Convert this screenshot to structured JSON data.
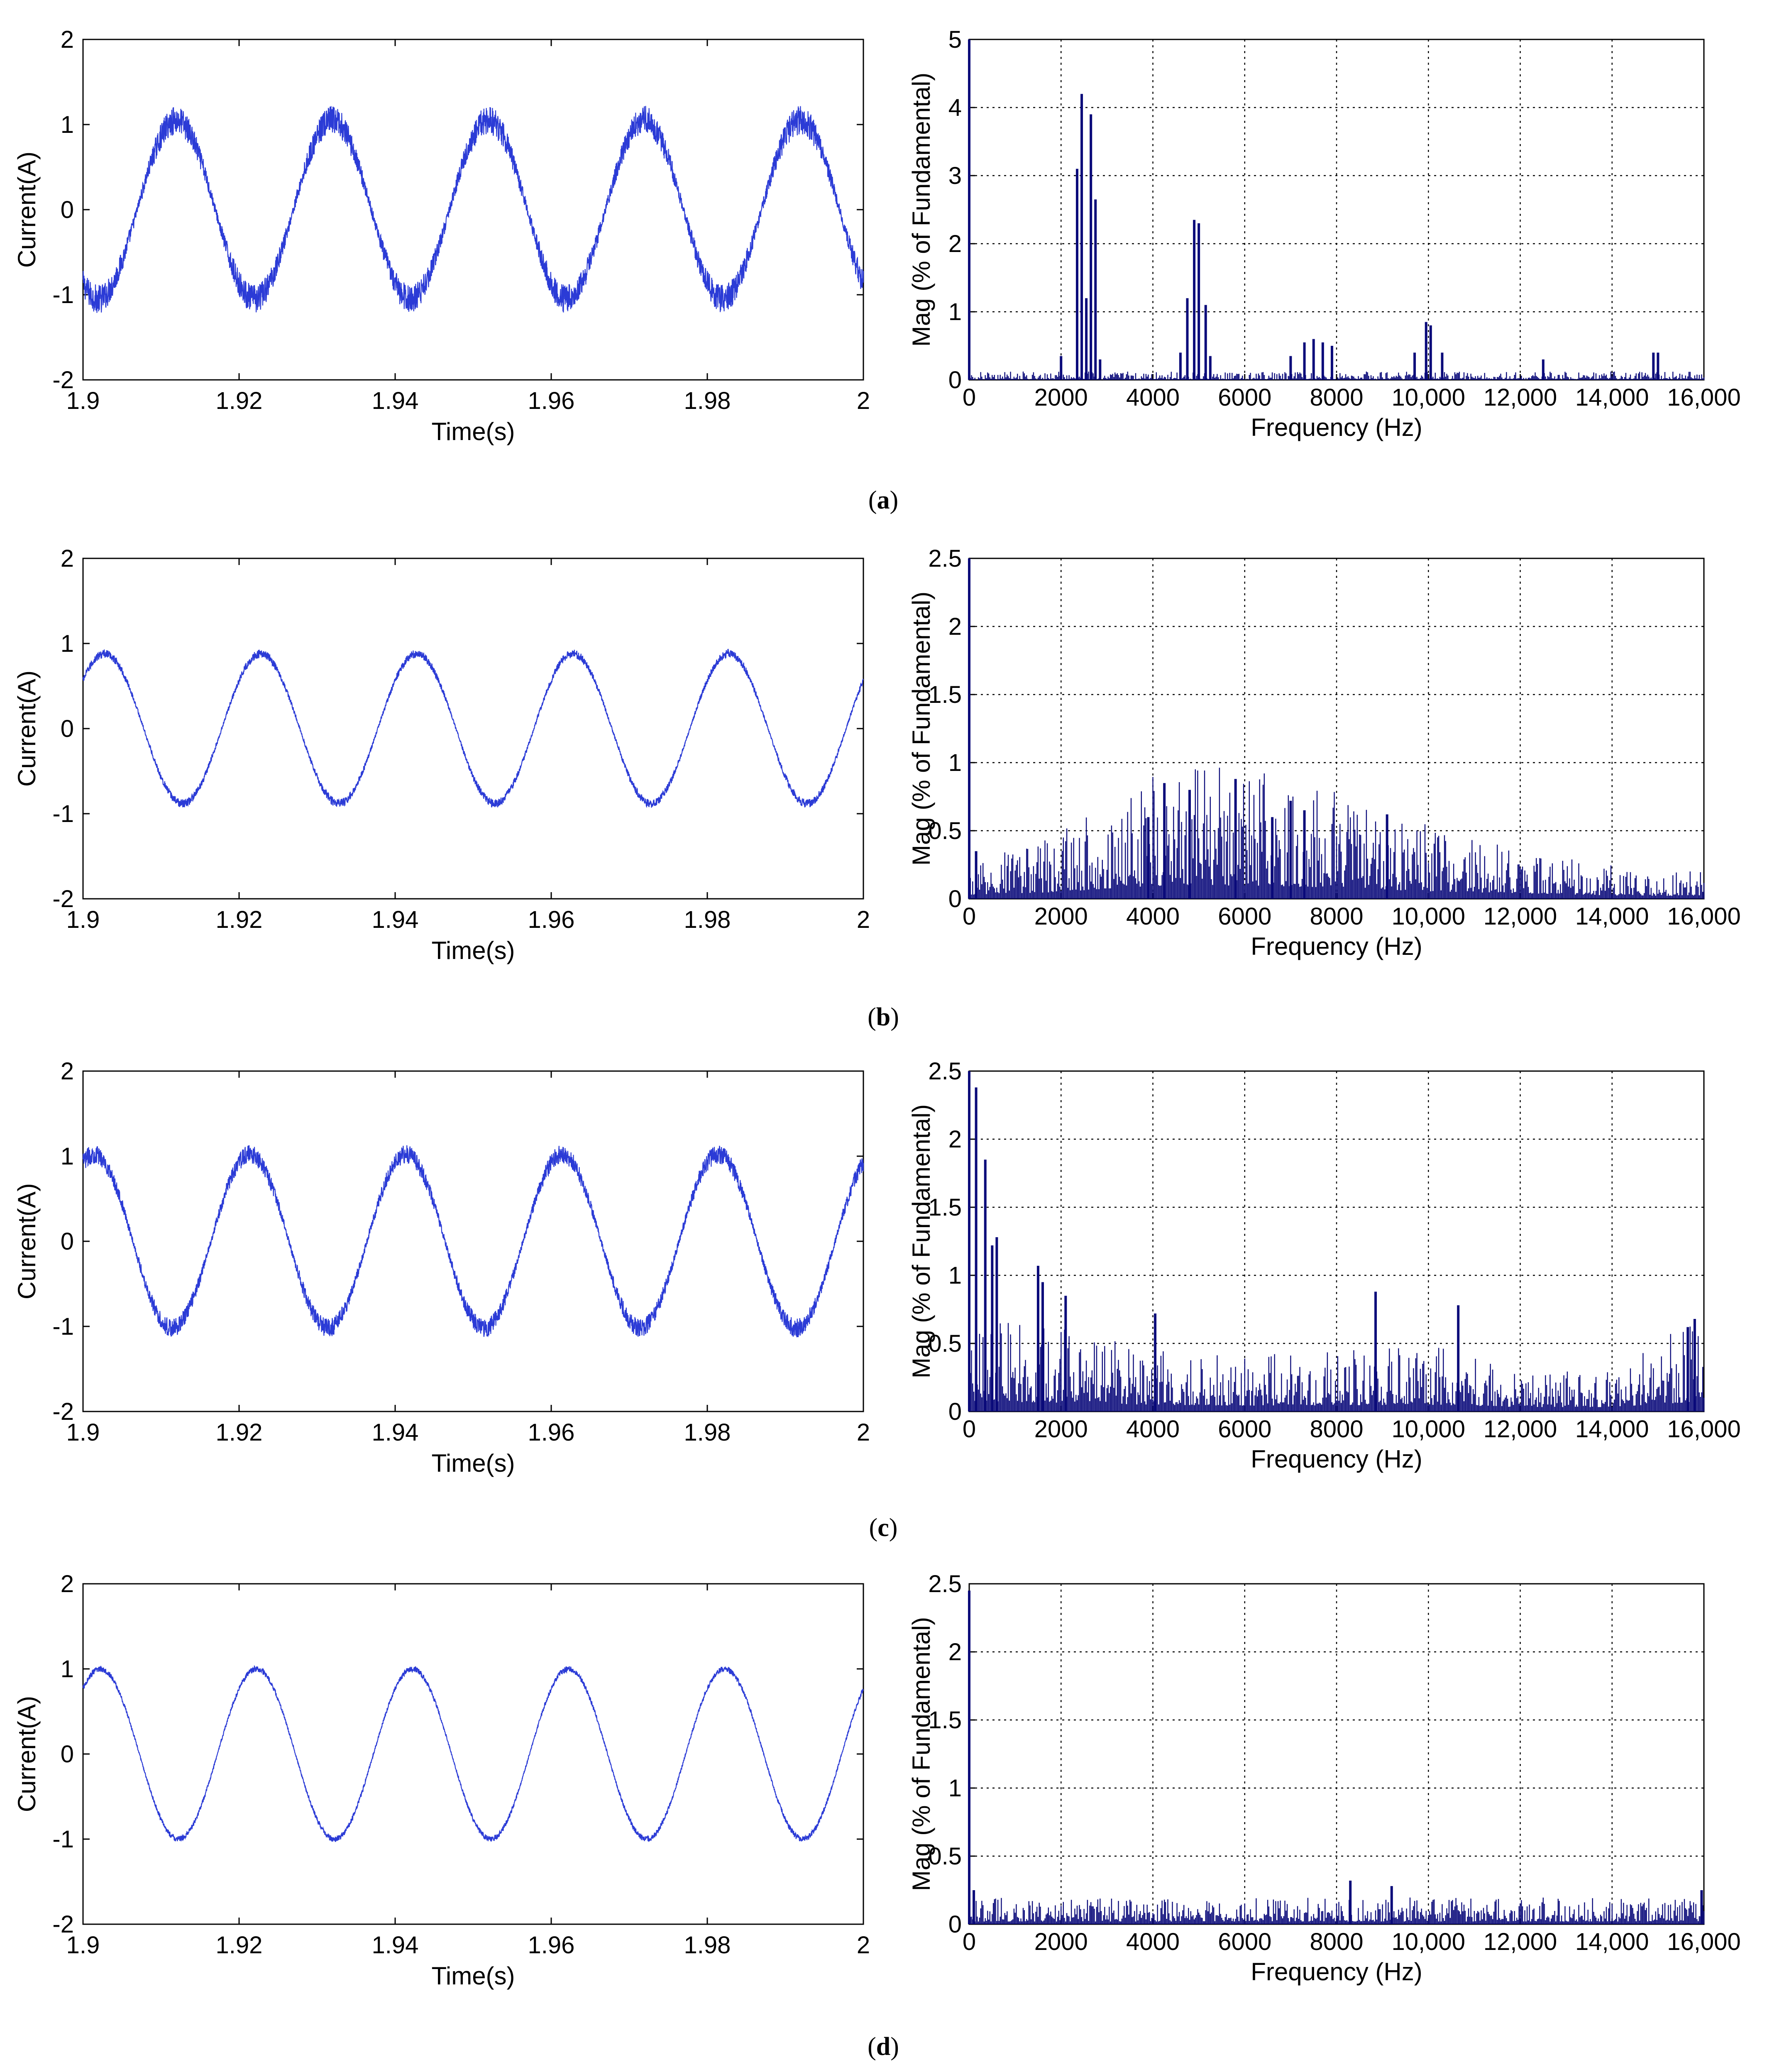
{
  "figure": {
    "panels": [
      {
        "id": "a",
        "caption_open": "(",
        "caption_letter": "a",
        "caption_close": ")",
        "time_plot": {
          "type": "line",
          "xlabel": "Time(s)",
          "ylabel": "Current(A)",
          "xlim": [
            1.9,
            2.0
          ],
          "ylim": [
            -2,
            2
          ],
          "xticks": [
            "1.9",
            "1.92",
            "1.94",
            "1.96",
            "1.98",
            "2"
          ],
          "yticks": [
            "-2",
            "-1",
            "0",
            "1",
            "2"
          ],
          "frequency_hz": 50,
          "amplitude": 1.05,
          "phase_deg": 235,
          "ripple": 0.17,
          "line_color": "#2b3bd6",
          "grid": false
        },
        "spectrum": {
          "type": "bar",
          "xlabel": "Frequency (Hz)",
          "ylabel": "Mag (% of Fundamental)",
          "xlim": [
            0,
            16000
          ],
          "ylim": [
            0,
            5
          ],
          "xticks": [
            "0",
            "2000",
            "4000",
            "6000",
            "8000",
            "10,000",
            "12,000",
            "14,000",
            "16,000"
          ],
          "yticks": [
            "0",
            "1",
            "2",
            "3",
            "4",
            "5"
          ],
          "grid": true,
          "bar_color": "#0a0a7a",
          "noise_level": 0.05,
          "peaks": [
            [
              0,
              5.0
            ],
            [
              2350,
              3.1
            ],
            [
              2450,
              4.2
            ],
            [
              2550,
              1.2
            ],
            [
              2650,
              3.9
            ],
            [
              2750,
              2.65
            ],
            [
              2850,
              0.3
            ],
            [
              2000,
              0.35
            ],
            [
              4600,
              0.4
            ],
            [
              4750,
              1.2
            ],
            [
              4900,
              2.35
            ],
            [
              5000,
              2.3
            ],
            [
              5150,
              1.1
            ],
            [
              5250,
              0.35
            ],
            [
              7000,
              0.35
            ],
            [
              7300,
              0.55
            ],
            [
              7500,
              0.6
            ],
            [
              7700,
              0.55
            ],
            [
              7900,
              0.5
            ],
            [
              9700,
              0.4
            ],
            [
              9950,
              0.85
            ],
            [
              10050,
              0.8
            ],
            [
              10300,
              0.4
            ],
            [
              12500,
              0.3
            ],
            [
              14900,
              0.4
            ],
            [
              15000,
              0.4
            ]
          ]
        }
      },
      {
        "id": "b",
        "caption_open": "(",
        "caption_letter": "b",
        "caption_close": ")",
        "time_plot": {
          "type": "line",
          "xlabel": "Time(s)",
          "ylabel": "Current(A)",
          "xlim": [
            1.9,
            2.0
          ],
          "ylim": [
            -2,
            2
          ],
          "xticks": [
            "1.9",
            "1.92",
            "1.94",
            "1.96",
            "1.98",
            "2"
          ],
          "yticks": [
            "-2",
            "-1",
            "0",
            "1",
            "2"
          ],
          "frequency_hz": 50,
          "amplitude": 0.88,
          "phase_deg": 40,
          "ripple": 0.05,
          "line_color": "#2b3bd6",
          "grid": false
        },
        "spectrum": {
          "type": "bar",
          "xlabel": "Frequency (Hz)",
          "ylabel": "Mag (% of Fundamental)",
          "xlim": [
            0,
            16000
          ],
          "ylim": [
            0,
            2.5
          ],
          "xticks": [
            "0",
            "2000",
            "4000",
            "6000",
            "8000",
            "10,000",
            "12,000",
            "14,000",
            "16,000"
          ],
          "yticks": [
            "0",
            "0.5",
            "1",
            "1.5",
            "2",
            "2.5"
          ],
          "grid": true,
          "bar_color": "#0a0a7a",
          "envelope": [
            [
              0,
              0.12
            ],
            [
              2000,
              0.2
            ],
            [
              3500,
              0.35
            ],
            [
              5000,
              0.4
            ],
            [
              6500,
              0.38
            ],
            [
              8000,
              0.32
            ],
            [
              10000,
              0.22
            ],
            [
              12000,
              0.16
            ],
            [
              14000,
              0.1
            ],
            [
              16000,
              0.08
            ]
          ],
          "peaks": [
            [
              0,
              2.5
            ],
            [
              150,
              0.35
            ],
            [
              4250,
              0.85
            ],
            [
              4800,
              0.8
            ],
            [
              5800,
              0.88
            ],
            [
              7000,
              0.72
            ],
            [
              7300,
              0.65
            ],
            [
              9100,
              0.62
            ],
            [
              3900,
              0.6
            ],
            [
              6600,
              0.6
            ]
          ]
        }
      },
      {
        "id": "c",
        "caption_open": "(",
        "caption_letter": "c",
        "caption_close": ")",
        "time_plot": {
          "type": "line",
          "xlabel": "Time(s)",
          "ylabel": "Current(A)",
          "xlim": [
            1.9,
            2.0
          ],
          "ylim": [
            -2,
            2
          ],
          "xticks": [
            "1.9",
            "1.92",
            "1.94",
            "1.96",
            "1.98",
            "2"
          ],
          "yticks": [
            "-2",
            "-1",
            "0",
            "1",
            "2"
          ],
          "frequency_hz": 50,
          "amplitude": 1.02,
          "phase_deg": 65,
          "ripple": 0.11,
          "line_color": "#2b3bd6",
          "grid": false
        },
        "spectrum": {
          "type": "bar",
          "xlabel": "Frequency (Hz)",
          "ylabel": "Mag (% of Fundamental)",
          "xlim": [
            0,
            16000
          ],
          "ylim": [
            0,
            2.5
          ],
          "xticks": [
            "0",
            "2000",
            "4000",
            "6000",
            "8000",
            "10,000",
            "12,000",
            "14,000",
            "16,000"
          ],
          "yticks": [
            "0",
            "0.5",
            "1",
            "1.5",
            "2",
            "2.5"
          ],
          "grid": true,
          "bar_color": "#0a0a7a",
          "envelope": [
            [
              0,
              0.3
            ],
            [
              2000,
              0.25
            ],
            [
              4000,
              0.2
            ],
            [
              6000,
              0.17
            ],
            [
              8000,
              0.18
            ],
            [
              10000,
              0.2
            ],
            [
              12000,
              0.13
            ],
            [
              14000,
              0.13
            ],
            [
              16000,
              0.3
            ]
          ],
          "peaks": [
            [
              0,
              2.6
            ],
            [
              150,
              2.38
            ],
            [
              350,
              1.85
            ],
            [
              500,
              1.22
            ],
            [
              600,
              1.28
            ],
            [
              1500,
              1.07
            ],
            [
              1600,
              0.95
            ],
            [
              2100,
              0.85
            ],
            [
              4050,
              0.72
            ],
            [
              8850,
              0.88
            ],
            [
              10650,
              0.78
            ],
            [
              15800,
              0.68
            ],
            [
              15650,
              0.62
            ]
          ]
        }
      },
      {
        "id": "d",
        "caption_open": "(",
        "caption_letter": "d",
        "caption_close": ")",
        "time_plot": {
          "type": "line",
          "xlabel": "Time(s)",
          "ylabel": "Current(A)",
          "xlim": [
            1.9,
            2.0
          ],
          "ylim": [
            -2,
            2
          ],
          "xticks": [
            "1.9",
            "1.92",
            "1.94",
            "1.96",
            "1.98",
            "2"
          ],
          "yticks": [
            "-2",
            "-1",
            "0",
            "1",
            "2"
          ],
          "frequency_hz": 50,
          "amplitude": 1.0,
          "phase_deg": 50,
          "ripple": 0.035,
          "line_color": "#2b3bd6",
          "grid": false
        },
        "spectrum": {
          "type": "bar",
          "xlabel": "Frequency (Hz)",
          "ylabel": "Mag (% of Fundamental)",
          "xlim": [
            0,
            16000
          ],
          "ylim": [
            0,
            2.5
          ],
          "xticks": [
            "0",
            "2000",
            "4000",
            "6000",
            "8000",
            "10,000",
            "12,000",
            "14,000",
            "16,000"
          ],
          "yticks": [
            "0",
            "0.5",
            "1",
            "1.5",
            "2",
            "2.5"
          ],
          "grid": true,
          "bar_color": "#0a0a7a",
          "envelope": [
            [
              0,
              0.08
            ],
            [
              16000,
              0.08
            ]
          ],
          "peaks": [
            [
              0,
              2.45
            ],
            [
              100,
              0.25
            ],
            [
              8300,
              0.32
            ],
            [
              9200,
              0.28
            ],
            [
              15950,
              0.25
            ]
          ]
        }
      }
    ]
  }
}
